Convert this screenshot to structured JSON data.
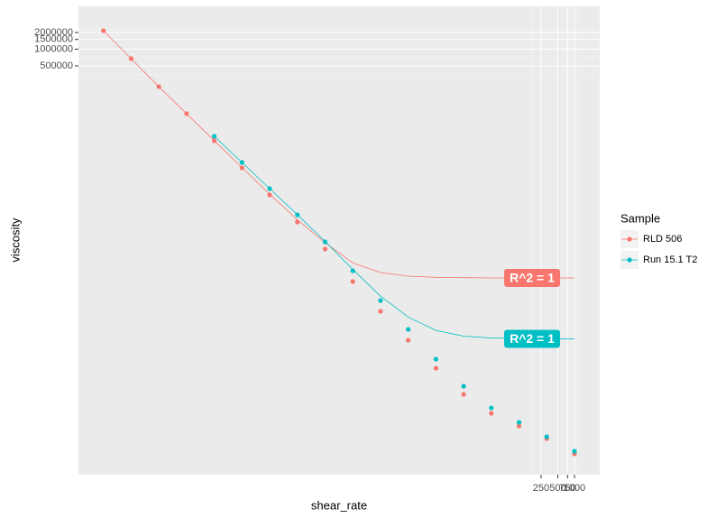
{
  "chart_data": {
    "type": "scatter",
    "x_label": "shear_rate",
    "y_label": "viscosity",
    "log_x": true,
    "log_y": true,
    "grid": true,
    "xlim": [
      1.12e-06,
      2860
    ],
    "ylim": [
      0.0213,
      5930000
    ],
    "xticks": [
      250,
      500,
      750,
      1000
    ],
    "yticks": [
      500000,
      1000000,
      1500000,
      2000000
    ],
    "legend_title": "Sample",
    "legend_position": "right",
    "series": [
      {
        "name": "RLD 506",
        "color": "#F8766D",
        "annotation": "R^2 = 1",
        "x": [
          3.16e-06,
          1e-05,
          3.16e-05,
          0.0001,
          0.000316,
          0.001,
          0.00316,
          0.01,
          0.0316,
          0.1,
          0.316,
          1,
          3.16,
          10,
          31.6,
          100,
          316,
          1000
        ],
        "values": [
          2160000,
          675000,
          211000,
          68700,
          22300,
          7250,
          2355,
          766,
          249,
          64.6,
          18.8,
          5.66,
          1.77,
          0.598,
          0.272,
          0.161,
          0.0953,
          0.0505
        ],
        "fit": [
          2160000,
          675000,
          211000,
          68775,
          22375,
          7325,
          2430,
          841,
          324,
          140,
          94,
          81,
          77,
          76,
          75,
          75,
          75,
          75
        ]
      },
      {
        "name": "Run 15.1 T2",
        "color": "#00BFC4",
        "annotation": "R^2 = 1",
        "x": [
          0.000316,
          0.001,
          0.00316,
          0.01,
          0.0316,
          0.1,
          0.316,
          1,
          3.16,
          10,
          31.6,
          100,
          316,
          1000
        ],
        "values": [
          26900,
          9080,
          3060,
          1030,
          336,
          101,
          29.4,
          8.87,
          2.58,
          0.838,
          0.34,
          0.187,
          0.103,
          0.0564
        ],
        "fit": [
          26906,
          9086,
          3066,
          1036,
          342,
          107,
          35.3,
          14.8,
          8.5,
          6.7,
          6.2,
          6.1,
          6.0,
          6.0
        ]
      }
    ]
  }
}
